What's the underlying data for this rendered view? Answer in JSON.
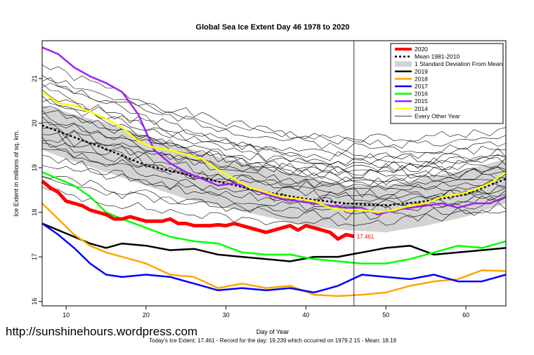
{
  "chart_data": {
    "type": "line",
    "title": "Global Sea Ice Extent Day 46 1978 to 2020",
    "xlabel": "Day of Year",
    "ylabel": "Ice Extent in millions of sq. km.",
    "xlim": [
      7,
      65
    ],
    "ylim": [
      15.9,
      21.85
    ],
    "x_ticks": [
      10,
      20,
      30,
      40,
      50,
      60
    ],
    "y_ticks": [
      16,
      17,
      18,
      19,
      20,
      21
    ],
    "marker_day": 46,
    "current_value_label": "17.461",
    "footer": "Today's Ice Extent: 17.461  - Record for the day: 19.239 which occurred on 1979.2 15  - Mean: 18.19",
    "watermark": "http://sunshinehours.wordpress.com",
    "legend_position": "top-right",
    "legend": [
      {
        "label": "2020",
        "color": "#ff0000",
        "style": "thick"
      },
      {
        "label": "Mean 1981-2010",
        "color": "#000000",
        "style": "dotted"
      },
      {
        "label": "1 Standard Deviation From Mean",
        "color": "#d3d3d3",
        "style": "band"
      },
      {
        "label": "2019",
        "color": "#000000",
        "style": "solid"
      },
      {
        "label": "2018",
        "color": "#ffa500",
        "style": "solid"
      },
      {
        "label": "2017",
        "color": "#0000ff",
        "style": "solid"
      },
      {
        "label": "2016",
        "color": "#00ff00",
        "style": "solid"
      },
      {
        "label": "2015",
        "color": "#a020f0",
        "style": "solid"
      },
      {
        "label": "2014",
        "color": "#ffff00",
        "style": "solid"
      },
      {
        "label": "Every Other Year",
        "color": "#000000",
        "style": "thin"
      }
    ],
    "std_band": {
      "x": [
        7,
        10,
        15,
        20,
        25,
        30,
        35,
        40,
        45,
        50,
        55,
        60,
        65
      ],
      "upper": [
        20.4,
        20.25,
        20.0,
        19.72,
        19.45,
        19.2,
        19.0,
        18.8,
        18.6,
        18.6,
        18.78,
        18.95,
        19.2
      ],
      "lower": [
        19.4,
        19.2,
        18.9,
        18.6,
        18.3,
        18.1,
        17.9,
        17.7,
        17.6,
        17.55,
        17.7,
        17.9,
        18.2
      ]
    },
    "series": [
      {
        "name": "Mean 1981-2010",
        "color": "#000000",
        "width": 2.5,
        "dash": "3,3",
        "x": [
          7,
          10,
          15,
          20,
          25,
          30,
          35,
          40,
          45,
          50,
          55,
          60,
          65
        ],
        "y": [
          19.95,
          19.75,
          19.42,
          19.05,
          18.85,
          18.65,
          18.45,
          18.3,
          18.2,
          18.15,
          18.25,
          18.4,
          18.75
        ]
      },
      {
        "name": "2019",
        "color": "#000000",
        "width": 2.5,
        "x": [
          7,
          9,
          11,
          13,
          15,
          17,
          20,
          23,
          26,
          29,
          32,
          35,
          38,
          41,
          44,
          47,
          50,
          53,
          56,
          59,
          62,
          65
        ],
        "y": [
          17.75,
          17.6,
          17.45,
          17.3,
          17.2,
          17.3,
          17.25,
          17.15,
          17.18,
          17.05,
          17.0,
          16.95,
          16.9,
          17.0,
          17.0,
          17.1,
          17.2,
          17.25,
          17.05,
          17.1,
          17.15,
          17.2
        ]
      },
      {
        "name": "2018",
        "color": "#ffa500",
        "width": 2.5,
        "x": [
          7,
          9,
          11,
          13,
          15,
          17,
          20,
          23,
          26,
          29,
          32,
          35,
          38,
          41,
          44,
          47,
          50,
          53,
          56,
          59,
          62,
          65
        ],
        "y": [
          18.2,
          17.85,
          17.5,
          17.25,
          17.1,
          17.0,
          16.85,
          16.6,
          16.55,
          16.3,
          16.4,
          16.3,
          16.35,
          16.15,
          16.12,
          16.15,
          16.2,
          16.35,
          16.45,
          16.5,
          16.7,
          16.68
        ]
      },
      {
        "name": "2017",
        "color": "#0000ff",
        "width": 2.5,
        "x": [
          7,
          9,
          11,
          13,
          15,
          17,
          20,
          23,
          26,
          29,
          32,
          35,
          38,
          41,
          44,
          47,
          50,
          53,
          56,
          59,
          62,
          65
        ],
        "y": [
          17.75,
          17.5,
          17.2,
          16.85,
          16.6,
          16.55,
          16.6,
          16.55,
          16.4,
          16.25,
          16.3,
          16.25,
          16.3,
          16.2,
          16.35,
          16.6,
          16.55,
          16.5,
          16.6,
          16.45,
          16.45,
          16.6
        ]
      },
      {
        "name": "2016",
        "color": "#00ff00",
        "width": 2.5,
        "x": [
          7,
          9,
          11,
          13,
          15,
          17,
          20,
          23,
          26,
          29,
          32,
          35,
          38,
          41,
          44,
          47,
          50,
          53,
          56,
          59,
          62,
          65
        ],
        "y": [
          18.9,
          18.75,
          18.6,
          18.35,
          18.0,
          17.85,
          17.65,
          17.45,
          17.35,
          17.3,
          17.1,
          17.05,
          17.05,
          16.95,
          16.9,
          16.85,
          16.85,
          16.95,
          17.1,
          17.25,
          17.2,
          17.35
        ]
      },
      {
        "name": "2015",
        "color": "#a020f0",
        "width": 2.5,
        "x": [
          7,
          9,
          11,
          13,
          15,
          17,
          19,
          21,
          23,
          25,
          27,
          29,
          31,
          33,
          35,
          37,
          39,
          41,
          43,
          45,
          47,
          49,
          51,
          53,
          55,
          57,
          59,
          61,
          63,
          65
        ],
        "y": [
          21.7,
          21.55,
          21.25,
          21.05,
          20.9,
          20.7,
          20.2,
          19.4,
          19.1,
          18.9,
          18.75,
          18.6,
          18.65,
          18.55,
          18.4,
          18.3,
          18.25,
          18.2,
          18.15,
          18.1,
          18.1,
          17.95,
          18.05,
          18.1,
          18.15,
          18.2,
          18.1,
          18.2,
          18.2,
          18.35
        ]
      },
      {
        "name": "2014",
        "color": "#ffff00",
        "width": 2.5,
        "x": [
          7,
          9,
          11,
          13,
          15,
          17,
          19,
          21,
          23,
          25,
          27,
          29,
          31,
          33,
          35,
          37,
          39,
          41,
          43,
          45,
          47,
          49,
          51,
          53,
          55,
          57,
          59,
          61,
          63,
          65
        ],
        "y": [
          20.7,
          20.45,
          20.4,
          20.25,
          20.1,
          19.9,
          19.6,
          19.45,
          19.4,
          19.3,
          19.2,
          18.95,
          18.75,
          18.55,
          18.45,
          18.35,
          18.3,
          18.25,
          18.1,
          18.05,
          18.05,
          18.0,
          18.05,
          18.15,
          18.2,
          18.35,
          18.4,
          18.5,
          18.65,
          18.9
        ]
      },
      {
        "name": "2020",
        "color": "#ff0000",
        "width": 5,
        "x": [
          7,
          8,
          9,
          10,
          11,
          12,
          13,
          14,
          15,
          16,
          17,
          18,
          19,
          20,
          21,
          22,
          23,
          24,
          25,
          26,
          27,
          28,
          29,
          30,
          31,
          32,
          33,
          34,
          35,
          36,
          37,
          38,
          39,
          40,
          41,
          42,
          43,
          44,
          45,
          46
        ],
        "y": [
          18.7,
          18.55,
          18.45,
          18.25,
          18.2,
          18.15,
          18.05,
          18.0,
          17.95,
          17.85,
          17.85,
          17.9,
          17.85,
          17.8,
          17.8,
          17.8,
          17.85,
          17.75,
          17.75,
          17.7,
          17.7,
          17.7,
          17.72,
          17.7,
          17.75,
          17.7,
          17.65,
          17.6,
          17.55,
          17.6,
          17.65,
          17.7,
          17.6,
          17.7,
          17.65,
          17.6,
          17.55,
          17.4,
          17.5,
          17.461
        ]
      }
    ],
    "background_years": [
      {
        "start": 21.3,
        "end": 19.4,
        "seed": 1
      },
      {
        "start": 21.1,
        "end": 19.3,
        "seed": 2
      },
      {
        "start": 21.0,
        "end": 18.9,
        "seed": 3
      },
      {
        "start": 20.9,
        "end": 19.6,
        "seed": 4
      },
      {
        "start": 20.8,
        "end": 18.7,
        "seed": 5
      },
      {
        "start": 20.7,
        "end": 19.1,
        "seed": 6
      },
      {
        "start": 20.6,
        "end": 18.5,
        "seed": 7
      },
      {
        "start": 20.5,
        "end": 19.2,
        "seed": 8
      },
      {
        "start": 20.4,
        "end": 18.6,
        "seed": 9
      },
      {
        "start": 20.3,
        "end": 19.0,
        "seed": 10
      },
      {
        "start": 20.2,
        "end": 18.4,
        "seed": 11
      },
      {
        "start": 20.1,
        "end": 18.9,
        "seed": 12
      },
      {
        "start": 20.0,
        "end": 18.3,
        "seed": 13
      },
      {
        "start": 19.9,
        "end": 18.8,
        "seed": 14
      },
      {
        "start": 19.8,
        "end": 18.2,
        "seed": 15
      },
      {
        "start": 19.7,
        "end": 19.0,
        "seed": 16
      },
      {
        "start": 19.6,
        "end": 18.5,
        "seed": 17
      },
      {
        "start": 19.5,
        "end": 18.1,
        "seed": 18
      },
      {
        "start": 19.4,
        "end": 18.7,
        "seed": 19
      },
      {
        "start": 19.3,
        "end": 18.0,
        "seed": 20
      },
      {
        "start": 19.1,
        "end": 18.3,
        "seed": 21
      },
      {
        "start": 18.9,
        "end": 17.9,
        "seed": 22
      },
      {
        "start": 18.7,
        "end": 18.1,
        "seed": 23
      },
      {
        "start": 18.5,
        "end": 17.8,
        "seed": 24
      }
    ]
  }
}
